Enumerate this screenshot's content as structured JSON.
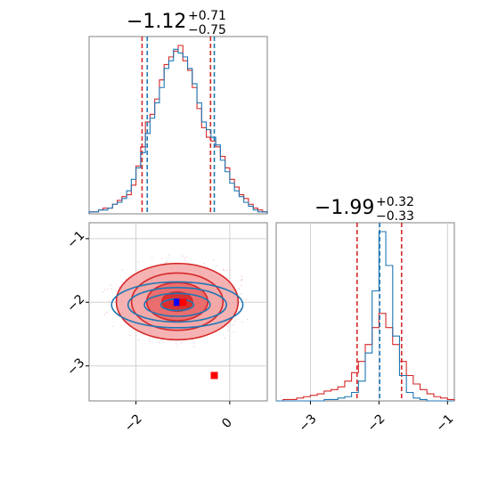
{
  "colors": {
    "blue": "#1f77b4",
    "red": "#d62728",
    "red_fill_light": "#f4a6a6",
    "red_fill_mid": "#e86464",
    "red_fill_dark": "#d62728",
    "grid": "#d0d0d0",
    "frame": "#808080",
    "truth_marker": "#ff0000",
    "median_marker": "#0000ff"
  },
  "panels": {
    "top_left": {
      "title_value": "−1.12",
      "title_sup": "+0.71",
      "title_sub": "−0.75"
    },
    "bottom_right": {
      "title_value": "−1.99",
      "title_sup": "+0.32",
      "title_sub": "−0.33"
    }
  },
  "chart_data": [
    {
      "type": "histogram",
      "panel": "top_left",
      "parameter": "x",
      "xlim": [
        -3.0,
        0.8
      ],
      "series": [
        {
          "name": "",
          "color": "#d62728",
          "bins": [
            -3.0,
            -2.9,
            -2.8,
            -2.7,
            -2.6,
            -2.5,
            -2.4,
            -2.3,
            -2.2,
            -2.1,
            -2.0,
            -1.9,
            -1.8,
            -1.7,
            -1.6,
            -1.5,
            -1.4,
            -1.3,
            -1.2,
            -1.1,
            -1.0,
            -0.9,
            -0.8,
            -0.7,
            -0.6,
            -0.5,
            -0.4,
            -0.3,
            -0.2,
            -0.1,
            0.0,
            0.1,
            0.2,
            0.3,
            0.4,
            0.5,
            0.6,
            0.7,
            0.8
          ],
          "counts": [
            1,
            1,
            2,
            3,
            3,
            5,
            7,
            9,
            10,
            15,
            25,
            35,
            48,
            52,
            60,
            70,
            78,
            82,
            85,
            88,
            80,
            75,
            66,
            55,
            45,
            40,
            38,
            35,
            30,
            24,
            18,
            14,
            10,
            8,
            5,
            3,
            2,
            1
          ],
          "quantiles": [
            -1.87,
            -1.12,
            -0.41
          ]
        },
        {
          "name": "",
          "color": "#1f77b4",
          "bins": [
            -3.0,
            -2.9,
            -2.8,
            -2.7,
            -2.6,
            -2.5,
            -2.4,
            -2.3,
            -2.2,
            -2.1,
            -2.0,
            -1.9,
            -1.8,
            -1.7,
            -1.6,
            -1.5,
            -1.4,
            -1.3,
            -1.2,
            -1.1,
            -1.0,
            -0.9,
            -0.8,
            -0.7,
            -0.6,
            -0.5,
            -0.4,
            -0.3,
            -0.2,
            -0.1,
            0.0,
            0.1,
            0.2,
            0.3,
            0.4,
            0.5,
            0.6,
            0.7,
            0.8
          ],
          "counts": [
            1,
            1,
            2,
            2,
            3,
            5,
            6,
            8,
            12,
            18,
            24,
            32,
            42,
            50,
            58,
            66,
            76,
            80,
            86,
            84,
            82,
            76,
            68,
            58,
            48,
            44,
            40,
            36,
            28,
            22,
            16,
            12,
            9,
            6,
            4,
            2,
            1,
            1
          ],
          "quantiles": [
            -1.76,
            -1.12,
            -0.33
          ]
        }
      ]
    },
    {
      "type": "histogram",
      "panel": "bottom_right",
      "parameter": "y",
      "xlim": [
        -3.5,
        -0.9
      ],
      "x_ticks": [
        "−3",
        "−2",
        "−1"
      ],
      "series": [
        {
          "name": "",
          "color": "#d62728",
          "bins": [
            -3.5,
            -3.4,
            -3.3,
            -3.2,
            -3.1,
            -3.0,
            -2.9,
            -2.8,
            -2.7,
            -2.6,
            -2.5,
            -2.4,
            -2.3,
            -2.2,
            -2.1,
            -2.0,
            -1.9,
            -1.8,
            -1.7,
            -1.6,
            -1.5,
            -1.4,
            -1.3,
            -1.2,
            -1.1,
            -1.0,
            -0.9
          ],
          "counts": [
            0,
            1,
            1,
            2,
            3,
            4,
            5,
            7,
            8,
            10,
            14,
            20,
            28,
            40,
            52,
            62,
            52,
            40,
            28,
            18,
            12,
            8,
            5,
            3,
            2,
            1
          ],
          "quantiles": [
            -2.32,
            -1.99,
            -1.67
          ]
        },
        {
          "name": "",
          "color": "#1f77b4",
          "bins": [
            -3.5,
            -3.4,
            -3.3,
            -3.2,
            -3.1,
            -3.0,
            -2.9,
            -2.8,
            -2.7,
            -2.6,
            -2.5,
            -2.4,
            -2.3,
            -2.2,
            -2.1,
            -2.0,
            -1.9,
            -1.8,
            -1.7,
            -1.6,
            -1.5,
            -1.4,
            -1.3,
            -1.2,
            -1.1,
            -1.0,
            -0.9
          ],
          "counts": [
            0,
            0,
            0,
            0,
            0,
            0,
            0,
            1,
            1,
            2,
            3,
            6,
            14,
            34,
            78,
            120,
            96,
            46,
            18,
            6,
            2,
            1,
            0,
            0,
            0,
            0
          ],
          "quantiles": [
            -1.99,
            -1.99,
            -1.99
          ]
        }
      ]
    },
    {
      "type": "contour",
      "panel": "bottom_left",
      "xlim": [
        -3.0,
        0.8
      ],
      "ylim": [
        -3.55,
        -0.75
      ],
      "x_ticks": [
        "−2",
        "0"
      ],
      "y_ticks": [
        "−1",
        "−2",
        "−3"
      ],
      "series": [
        {
          "name": "",
          "color": "#d62728",
          "filled": true,
          "center": [
            -1.12,
            -1.99
          ],
          "sigma": [
            0.65,
            0.3
          ],
          "levels": [
            0.5,
            1.0,
            1.5,
            2.0
          ]
        },
        {
          "name": "",
          "color": "#1f77b4",
          "filled": false,
          "center": [
            -1.12,
            -2.04
          ],
          "sigma": [
            0.7,
            0.18
          ],
          "levels": [
            0.5,
            1.0,
            1.5,
            2.0
          ]
        }
      ],
      "markers": [
        {
          "name": "",
          "shape": "square",
          "color": "#0000ff",
          "x": -1.12,
          "y": -2.0
        },
        {
          "name": "",
          "shape": "square",
          "color": "#ff0000",
          "x": -0.33,
          "y": -3.15
        },
        {
          "name": "",
          "shape": "square",
          "color": "#ff0000",
          "x": -1.0,
          "y": -2.0
        }
      ]
    }
  ]
}
